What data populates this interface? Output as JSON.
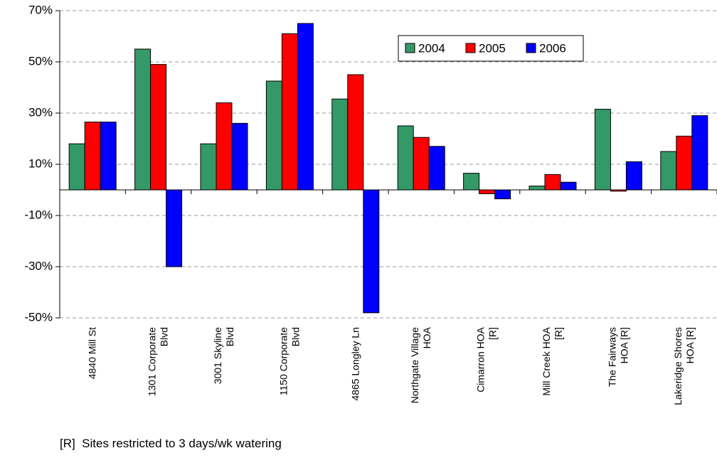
{
  "chart_data": {
    "type": "bar",
    "categories": [
      "4840 Mill St",
      "1301 Corporate\nBlvd",
      "3001 Skyline\nBlvd",
      "1150 Corporate\nBlvd",
      "4865 Longley Ln",
      "Northgate Village\nHOA",
      "Cimarron HOA\n[R]",
      "Mill Creek HOA\n[R]",
      "The Fairways\nHOA [R]",
      "Lakeridge Shores\nHOA [R]"
    ],
    "series": [
      {
        "name": "2004",
        "color": "#339966",
        "values": [
          18,
          55,
          18,
          42.5,
          35.5,
          25,
          6.5,
          1.5,
          31.5,
          15
        ]
      },
      {
        "name": "2005",
        "color": "#ff0000",
        "values": [
          26.5,
          49,
          34,
          61,
          45,
          20.5,
          -1.5,
          6,
          -0.5,
          21
        ]
      },
      {
        "name": "2006",
        "color": "#0000ff",
        "values": [
          26.5,
          -30,
          26,
          65,
          -48,
          17,
          -3.5,
          3,
          11,
          29
        ]
      }
    ],
    "ylim": [
      -50,
      70
    ],
    "yticks": [
      {
        "value": -50,
        "label": "-50%"
      },
      {
        "value": -30,
        "label": "-30%"
      },
      {
        "value": -10,
        "label": "-10%"
      },
      {
        "value": 10,
        "label": "10%"
      },
      {
        "value": 30,
        "label": "30%"
      },
      {
        "value": 50,
        "label": "50%"
      },
      {
        "value": 70,
        "label": "70%"
      }
    ],
    "grid": true,
    "legend": "top-right",
    "footnote": "[R]  Sites restricted to 3 days/wk watering"
  }
}
